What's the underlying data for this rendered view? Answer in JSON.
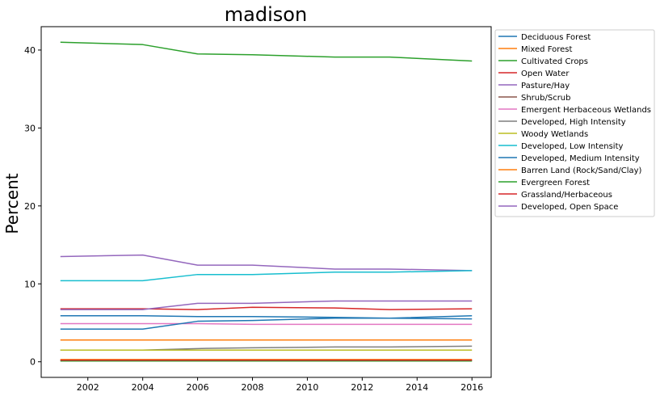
{
  "chart_data": {
    "type": "line",
    "title": "madison",
    "xlabel": "",
    "ylabel": "Percent",
    "x": [
      2001,
      2004,
      2006,
      2008,
      2011,
      2013,
      2016
    ],
    "xlim": [
      2000.3,
      2016.7
    ],
    "ylim": [
      -2.0,
      43.0
    ],
    "xticks": [
      2002,
      2004,
      2006,
      2008,
      2010,
      2012,
      2014,
      2016
    ],
    "yticks": [
      0,
      10,
      20,
      30,
      40
    ],
    "grid": false,
    "legend_position": "outside-right",
    "series": [
      {
        "name": "Deciduous Forest",
        "color": "#1f77b4",
        "values": [
          5.9,
          5.9,
          5.8,
          5.8,
          5.7,
          5.6,
          5.5
        ]
      },
      {
        "name": "Mixed Forest",
        "color": "#ff7f0e",
        "values": [
          0.3,
          0.3,
          0.3,
          0.3,
          0.3,
          0.3,
          0.3
        ]
      },
      {
        "name": "Cultivated Crops",
        "color": "#2ca02c",
        "values": [
          41.0,
          40.7,
          39.5,
          39.4,
          39.1,
          39.1,
          38.6
        ]
      },
      {
        "name": "Open Water",
        "color": "#d62728",
        "values": [
          6.8,
          6.8,
          6.7,
          7.0,
          6.9,
          6.7,
          6.8
        ]
      },
      {
        "name": "Pasture/Hay",
        "color": "#9467bd",
        "values": [
          13.5,
          13.7,
          12.4,
          12.4,
          11.9,
          11.9,
          11.7
        ]
      },
      {
        "name": "Shrub/Scrub",
        "color": "#8c564b",
        "values": [
          0.2,
          0.2,
          0.2,
          0.2,
          0.2,
          0.2,
          0.2
        ]
      },
      {
        "name": "Emergent Herbaceous Wetlands",
        "color": "#e377c2",
        "values": [
          4.9,
          4.9,
          4.9,
          4.8,
          4.8,
          4.8,
          4.8
        ]
      },
      {
        "name": "Developed, High Intensity",
        "color": "#7f7f7f",
        "values": [
          1.5,
          1.5,
          1.7,
          1.8,
          1.9,
          1.9,
          2.0
        ]
      },
      {
        "name": "Woody Wetlands",
        "color": "#bcbd22",
        "values": [
          1.5,
          1.5,
          1.5,
          1.5,
          1.5,
          1.5,
          1.5
        ]
      },
      {
        "name": "Developed, Low Intensity",
        "color": "#17becf",
        "values": [
          10.4,
          10.4,
          11.2,
          11.2,
          11.5,
          11.5,
          11.7
        ]
      },
      {
        "name": "Developed, Medium Intensity",
        "color": "#1f77b4",
        "values": [
          4.2,
          4.2,
          5.2,
          5.3,
          5.6,
          5.6,
          5.9
        ]
      },
      {
        "name": "Barren Land (Rock/Sand/Clay)",
        "color": "#ff7f0e",
        "values": [
          2.8,
          2.8,
          2.8,
          2.8,
          2.8,
          2.8,
          2.8
        ]
      },
      {
        "name": "Evergreen Forest",
        "color": "#2ca02c",
        "values": [
          0.1,
          0.1,
          0.1,
          0.1,
          0.1,
          0.1,
          0.1
        ]
      },
      {
        "name": "Grassland/Herbaceous",
        "color": "#d62728",
        "values": [
          0.2,
          0.2,
          0.2,
          0.2,
          0.2,
          0.2,
          0.2
        ]
      },
      {
        "name": "Developed, Open Space",
        "color": "#9467bd",
        "values": [
          6.7,
          6.7,
          7.5,
          7.5,
          7.8,
          7.8,
          7.8
        ]
      }
    ]
  }
}
